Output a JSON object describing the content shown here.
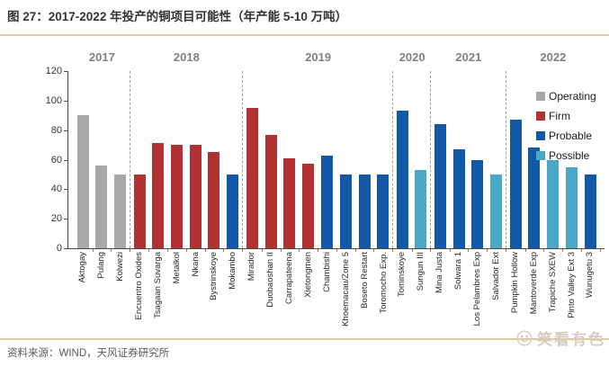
{
  "title": "图 27：2017-2022 年投产的铜项目可能性（年产能 5-10 万吨）",
  "source": "资料来源：WIND，天风证券研究所",
  "watermark": "笑看有色",
  "colors": {
    "operating": "#A8A8A8",
    "firm": "#B23132",
    "probable": "#1159A6",
    "possible": "#4AA7C7",
    "divider": "#DFC89E",
    "year_label": "#7F7F7F",
    "axis": "#4A4A4A",
    "x_tick": "#C06A4A",
    "watermark": "#D6CCC0"
  },
  "chart_data": {
    "type": "bar",
    "title": "2017-2022 年投产的铜项目可能性（年产能 5-10 万吨）",
    "xlabel": "",
    "ylabel": "",
    "ylim": [
      0,
      120
    ],
    "yticks": [
      0,
      20,
      40,
      60,
      80,
      100,
      120
    ],
    "grid": false,
    "legend_position": "top-right",
    "legend": [
      {
        "label": "Operating",
        "color": "#A8A8A8"
      },
      {
        "label": "Firm",
        "color": "#B23132"
      },
      {
        "label": "Probable",
        "color": "#1159A6"
      },
      {
        "label": "Possible",
        "color": "#4AA7C7"
      }
    ],
    "groups": [
      {
        "year": "2017",
        "bars": [
          {
            "label": "Aktogay",
            "value": 90,
            "category": "Operating"
          },
          {
            "label": "Pulang",
            "value": 56,
            "category": "Operating"
          },
          {
            "label": "Kolwezi",
            "value": 50,
            "category": "Operating"
          }
        ]
      },
      {
        "year": "2018",
        "bars": [
          {
            "label": "Encuentro Oxides",
            "value": 50,
            "category": "Firm"
          },
          {
            "label": "Tsagaan Suvarga",
            "value": 71,
            "category": "Firm"
          },
          {
            "label": "Metalkol",
            "value": 70,
            "category": "Firm"
          },
          {
            "label": "Nkana",
            "value": 70,
            "category": "Firm"
          },
          {
            "label": "Bystrinskoye",
            "value": 65,
            "category": "Firm"
          },
          {
            "label": "Mokambo",
            "value": 50,
            "category": "Probable"
          }
        ]
      },
      {
        "year": "2019",
        "bars": [
          {
            "label": "Mirador",
            "value": 95,
            "category": "Firm"
          },
          {
            "label": "Duobaoshan II",
            "value": 77,
            "category": "Firm"
          },
          {
            "label": "Carrapateena",
            "value": 61,
            "category": "Firm"
          },
          {
            "label": "Xietongmen",
            "value": 57,
            "category": "Firm"
          },
          {
            "label": "Chambishi",
            "value": 63,
            "category": "Probable"
          },
          {
            "label": "Khoemacau/Zone 5",
            "value": 50,
            "category": "Probable"
          },
          {
            "label": "Boseto Restart",
            "value": 50,
            "category": "Probable"
          },
          {
            "label": "Toromocho Exp.",
            "value": 50,
            "category": "Probable"
          }
        ]
      },
      {
        "year": "2020",
        "bars": [
          {
            "label": "Tominskoye",
            "value": 93,
            "category": "Probable"
          },
          {
            "label": "Sungun III",
            "value": 53,
            "category": "Possible"
          }
        ]
      },
      {
        "year": "2021",
        "bars": [
          {
            "label": "Mina Justa",
            "value": 84,
            "category": "Probable"
          },
          {
            "label": "Solwara 1",
            "value": 67,
            "category": "Probable"
          },
          {
            "label": "Los Pelambres Exp",
            "value": 60,
            "category": "Probable"
          },
          {
            "label": "Salvador Ext",
            "value": 50,
            "category": "Possible"
          }
        ]
      },
      {
        "year": "2022",
        "bars": [
          {
            "label": "Pumpkin Hollow",
            "value": 87,
            "category": "Probable"
          },
          {
            "label": "Mantoverde Exp",
            "value": 68,
            "category": "Probable"
          },
          {
            "label": "Trapiche SXEW",
            "value": 60,
            "category": "Possible"
          },
          {
            "label": "Pinto Valley Ext 3",
            "value": 55,
            "category": "Possible"
          },
          {
            "label": "Wunugetu 3",
            "value": 50,
            "category": "Probable"
          }
        ]
      }
    ]
  }
}
